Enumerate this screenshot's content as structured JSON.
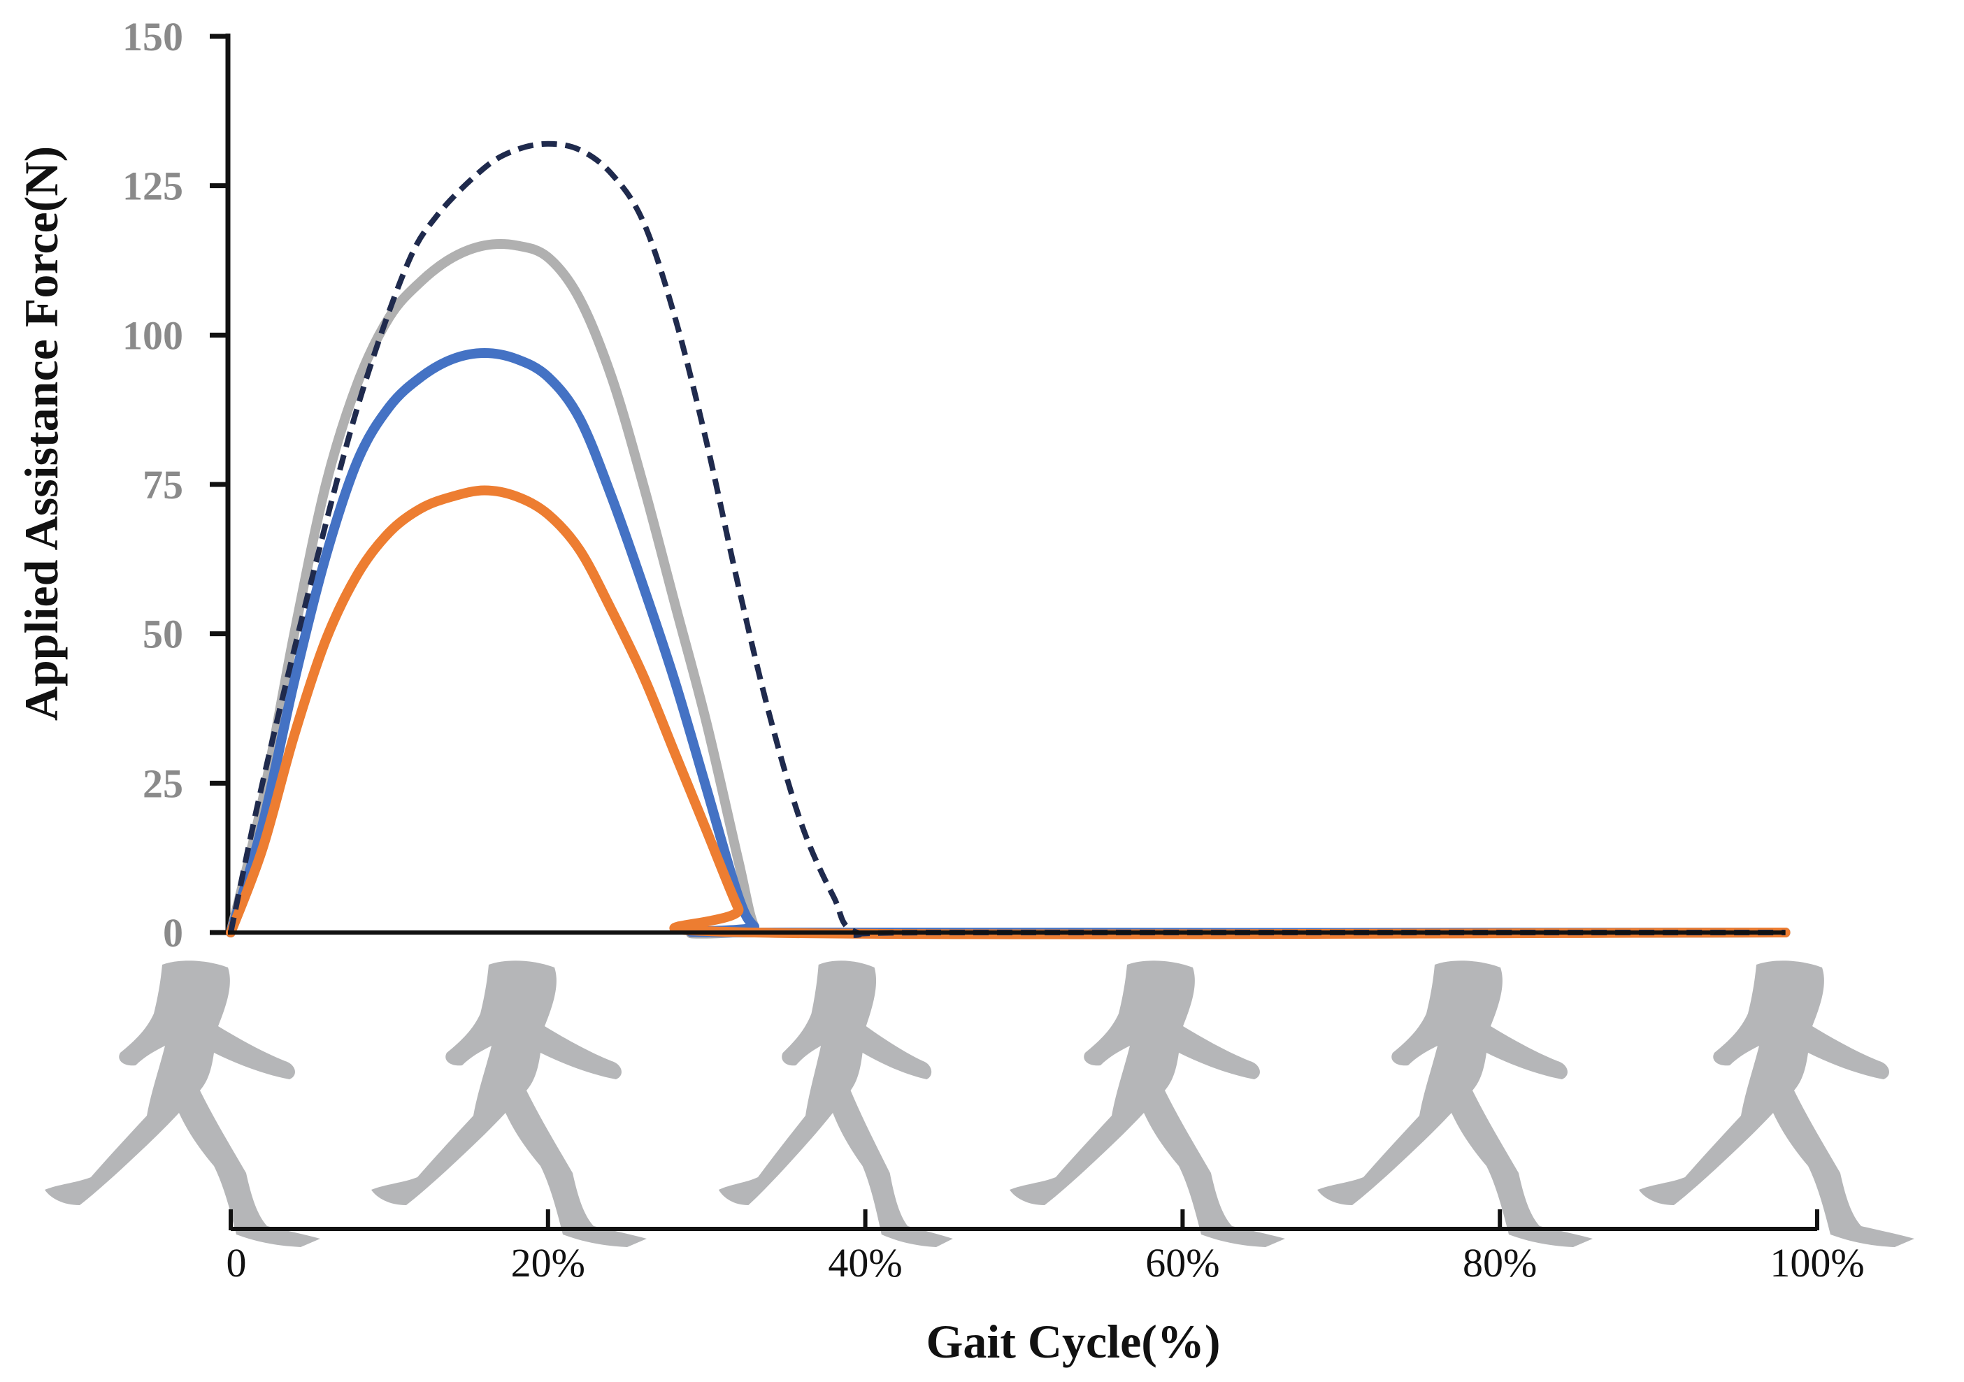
{
  "chart_data": {
    "type": "line",
    "title": "",
    "xlabel": "Gait Cycle(%)",
    "ylabel": "Applied Assistance Force(N)",
    "ylim": [
      0,
      150
    ],
    "yticks": [
      "0",
      "25",
      "50",
      "75",
      "100",
      "125",
      "150"
    ],
    "xlim": [
      0,
      100
    ],
    "xticks": [
      "0",
      "20%",
      "40%",
      "60%",
      "80%",
      "100%"
    ],
    "grid": false,
    "legend": "none",
    "x_end": 98,
    "series": [
      {
        "name": "dashed-navy",
        "color": "#1f2a4d",
        "dashed": true,
        "points": [
          [
            0,
            0
          ],
          [
            2,
            25
          ],
          [
            5,
            58
          ],
          [
            8,
            88
          ],
          [
            11,
            111
          ],
          [
            13,
            120
          ],
          [
            16,
            128
          ],
          [
            18,
            131
          ],
          [
            20,
            132
          ],
          [
            22,
            131
          ],
          [
            24,
            127
          ],
          [
            26,
            119
          ],
          [
            28,
            103
          ],
          [
            30,
            82
          ],
          [
            32,
            58
          ],
          [
            34,
            36
          ],
          [
            36,
            18
          ],
          [
            38,
            6
          ],
          [
            39.5,
            0
          ],
          [
            45,
            0
          ],
          [
            98,
            0
          ]
        ]
      },
      {
        "name": "gray",
        "color": "#b0b0b0",
        "dashed": false,
        "points": [
          [
            0,
            0
          ],
          [
            2,
            22
          ],
          [
            4,
            50
          ],
          [
            6,
            75
          ],
          [
            8,
            92
          ],
          [
            10,
            103
          ],
          [
            12,
            109
          ],
          [
            14,
            113
          ],
          [
            16,
            115
          ],
          [
            18,
            115
          ],
          [
            20,
            113
          ],
          [
            22,
            106
          ],
          [
            24,
            93
          ],
          [
            26,
            75
          ],
          [
            28,
            55
          ],
          [
            30,
            35
          ],
          [
            32,
            12
          ],
          [
            33,
            1
          ],
          [
            34,
            0
          ],
          [
            98,
            0
          ]
        ]
      },
      {
        "name": "blue",
        "color": "#4472c4",
        "dashed": false,
        "points": [
          [
            0,
            0
          ],
          [
            2,
            18
          ],
          [
            4,
            42
          ],
          [
            6,
            63
          ],
          [
            8,
            79
          ],
          [
            10,
            88
          ],
          [
            12,
            93
          ],
          [
            14,
            96
          ],
          [
            16,
            97
          ],
          [
            18,
            96
          ],
          [
            20,
            93
          ],
          [
            22,
            86
          ],
          [
            24,
            73
          ],
          [
            26,
            58
          ],
          [
            28,
            42
          ],
          [
            30,
            24
          ],
          [
            32,
            6
          ],
          [
            33,
            1
          ],
          [
            34,
            0
          ],
          [
            98,
            0
          ]
        ]
      },
      {
        "name": "orange",
        "color": "#ed7d31",
        "dashed": false,
        "points": [
          [
            0,
            0
          ],
          [
            2,
            14
          ],
          [
            4,
            33
          ],
          [
            6,
            49
          ],
          [
            8,
            60
          ],
          [
            10,
            67
          ],
          [
            12,
            71
          ],
          [
            14,
            73
          ],
          [
            16,
            74
          ],
          [
            18,
            73
          ],
          [
            20,
            70
          ],
          [
            22,
            64
          ],
          [
            24,
            54
          ],
          [
            26,
            43
          ],
          [
            28,
            30
          ],
          [
            30,
            17
          ],
          [
            32,
            4
          ],
          [
            33,
            0
          ],
          [
            98,
            0
          ]
        ]
      }
    ],
    "gait_figures": [
      {
        "name": "gait-figure-heel-strike"
      },
      {
        "name": "gait-figure-loading"
      },
      {
        "name": "gait-figure-swing"
      },
      {
        "name": "gait-figure-mid-swing"
      },
      {
        "name": "gait-figure-terminal"
      },
      {
        "name": "gait-figure-heel-strike-2"
      }
    ]
  }
}
